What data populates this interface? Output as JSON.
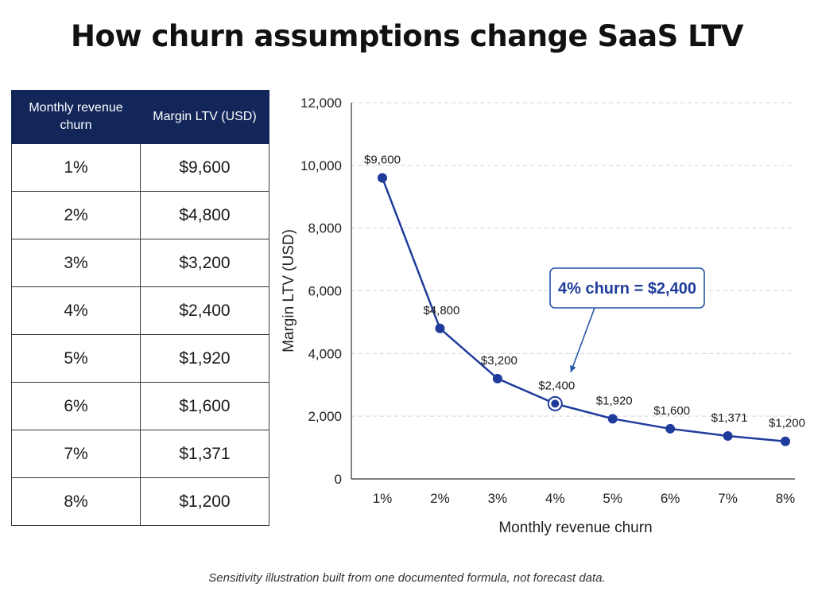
{
  "title": "How churn assumptions change SaaS LTV",
  "table": {
    "headers": [
      "Monthly revenue churn",
      "Margin LTV (USD)"
    ],
    "rows": [
      [
        "1%",
        "$9,600"
      ],
      [
        "2%",
        "$4,800"
      ],
      [
        "3%",
        "$3,200"
      ],
      [
        "4%",
        "$2,400"
      ],
      [
        "5%",
        "$1,920"
      ],
      [
        "6%",
        "$1,600"
      ],
      [
        "7%",
        "$1,371"
      ],
      [
        "8%",
        "$1,200"
      ]
    ]
  },
  "chart_data": {
    "type": "line",
    "categories": [
      "1%",
      "2%",
      "3%",
      "4%",
      "5%",
      "6%",
      "7%",
      "8%"
    ],
    "series": [
      {
        "values": [
          9600,
          4800,
          3200,
          2400,
          1920,
          1600,
          1371,
          1200
        ],
        "labels": [
          "$9,600",
          "$4,800",
          "$3,200",
          "$2,400",
          "$1,920",
          "$1,600",
          "$1,371",
          "$1,200"
        ]
      }
    ],
    "xlabel": "Monthly revenue churn",
    "ylabel": "Margin LTV (USD)",
    "ylim": [
      0,
      12000
    ],
    "yticks": [
      0,
      2000,
      4000,
      6000,
      8000,
      10000,
      12000
    ],
    "ytick_labels": [
      "0",
      "2,000",
      "4,000",
      "6,000",
      "8,000",
      "10,000",
      "12,000"
    ],
    "grid": true,
    "highlight_index": 3,
    "annotation": "4% churn = $2,400",
    "line_color": "#1f3c9c",
    "annotation_border_color": "#2456a8"
  },
  "footnote": "Sensitivity illustration built from one documented formula, not forecast data."
}
